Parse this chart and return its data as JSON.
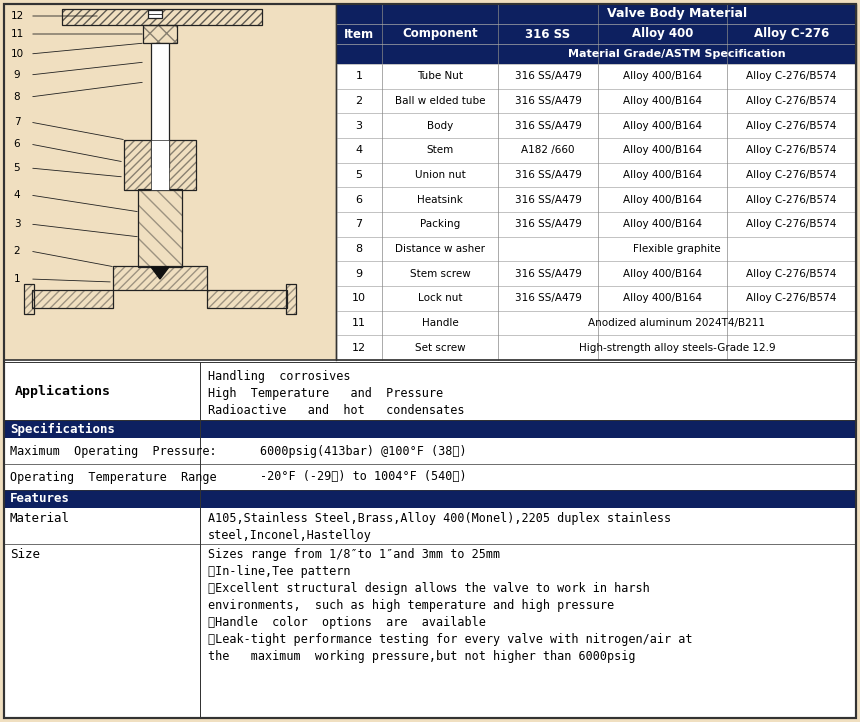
{
  "bg_color": "#f0dfc0",
  "table_header_bg": "#0d2060",
  "section_header_bg": "#0d2060",
  "body_text": "#000000",
  "table_data": [
    [
      "1",
      "Tube Nut",
      "316 SS/A479",
      "Alloy 400/B164",
      "Alloy C-276/B574"
    ],
    [
      "2",
      "Ball w elded tube",
      "316 SS/A479",
      "Alloy 400/B164",
      "Alloy C-276/B574"
    ],
    [
      "3",
      "Body",
      "316 SS/A479",
      "Alloy 400/B164",
      "Alloy C-276/B574"
    ],
    [
      "4",
      "Stem",
      "A182 /660",
      "Alloy 400/B164",
      "Alloy C-276/B574"
    ],
    [
      "5",
      "Union nut",
      "316 SS/A479",
      "Alloy 400/B164",
      "Alloy C-276/B574"
    ],
    [
      "6",
      "Heatsink",
      "316 SS/A479",
      "Alloy 400/B164",
      "Alloy C-276/B574"
    ],
    [
      "7",
      "Packing",
      "316 SS/A479",
      "Alloy 400/B164",
      "Alloy C-276/B574"
    ],
    [
      "8",
      "Distance w asher",
      "Flexible graphite",
      "",
      ""
    ],
    [
      "9",
      "Stem screw",
      "316 SS/A479",
      "Alloy 400/B164",
      "Alloy C-276/B574"
    ],
    [
      "10",
      "Lock nut",
      "316 SS/A479",
      "Alloy 400/B164",
      "Alloy C-276/B574"
    ],
    [
      "11",
      "Handle",
      "Anodized aluminum 2024T4/B211",
      "",
      ""
    ],
    [
      "12",
      "Set screw",
      "High-strength alloy steels-Grade 12.9",
      "",
      ""
    ]
  ],
  "applications_label": "Applications",
  "applications_text": [
    "Handling  corrosives",
    "High  Temperature   and  Pressure",
    "Radioactive   and  hot   condensates"
  ],
  "spec_label": "Specifications",
  "max_pressure_label": "Maximum  Operating  Pressure:",
  "max_pressure_value": "6000psig(413bar) @100°F (38℃)",
  "temp_range_label": "Operating  Temperature  Range",
  "temp_range_value": "-20°F (-29℃) to 1004°F (540℃)",
  "features_label": "Features",
  "material_label": "Material",
  "material_line1": "A105,Stainless Steel,Brass,Alloy 400(Monel),2205 duplex stainless",
  "material_line2": "steel,Inconel,Hastelloy",
  "size_label": "Size",
  "size_lines": [
    "Sizes range from 1/8″to 1″and 3mm to 25mm",
    "ⓄIn-line,Tee pattern",
    "ⓄExcellent structural design allows the valve to work in harsh",
    "environments,  such as high temperature and high pressure",
    "ⓄHandle  color  options  are  available",
    "ⓄLeak-tight performance testing for every valve with nitrogen/air at",
    "the   maximum  working pressure,but not higher than 6000psig"
  ]
}
